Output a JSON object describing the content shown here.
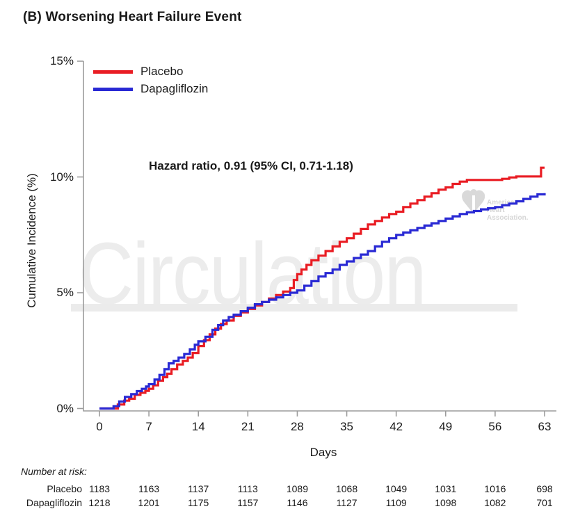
{
  "title": "(B) Worsening Heart Failure Event",
  "annotation": "Hazard ratio, 0.91 (95% CI, 0.71-1.18)",
  "watermark": {
    "journal": "Circulation",
    "aha": [
      "American",
      "Heart",
      "Association."
    ],
    "text_color": "#ececec"
  },
  "legend": {
    "items": [
      {
        "label": "Placebo",
        "color": "#e91c23"
      },
      {
        "label": "Dapagliflozin",
        "color": "#2929d4"
      }
    ]
  },
  "axes": {
    "ylabel": "Cumulative Incidence (%)",
    "xlabel": "Days",
    "axis_color": "#9c9c9c"
  },
  "chart_data": {
    "type": "line",
    "subtype": "kaplan-meier-step-cumulative-incidence",
    "title": "(B) Worsening Heart Failure Event",
    "xlabel": "Days",
    "ylabel": "Cumulative Incidence (%)",
    "xlim": [
      0,
      63
    ],
    "ylim_pct": [
      0,
      15
    ],
    "xticks": [
      0,
      7,
      14,
      21,
      28,
      35,
      42,
      49,
      56,
      63
    ],
    "yticks": [
      {
        "pct": 0,
        "label": "0%"
      },
      {
        "pct": 5,
        "label": "5%"
      },
      {
        "pct": 10,
        "label": "10%"
      },
      {
        "pct": 15,
        "label": "15%"
      }
    ],
    "grid": false,
    "legend_position": "top-left-inside",
    "annotation": "Hazard ratio, 0.91 (95% CI, 0.71-1.18)",
    "series": [
      {
        "name": "Placebo",
        "color": "#e91c23",
        "points_day_pct": [
          [
            0,
            0
          ],
          [
            2.6,
            0.17
          ],
          [
            3.5,
            0.34
          ],
          [
            4.2,
            0.42
          ],
          [
            5,
            0.59
          ],
          [
            5.8,
            0.68
          ],
          [
            6.5,
            0.76
          ],
          [
            7,
            0.85
          ],
          [
            7.6,
            1
          ],
          [
            8.3,
            1.2
          ],
          [
            9,
            1.35
          ],
          [
            9.6,
            1.5
          ],
          [
            10.2,
            1.7
          ],
          [
            11,
            1.9
          ],
          [
            11.8,
            2.05
          ],
          [
            12.5,
            2.2
          ],
          [
            13.2,
            2.4
          ],
          [
            14,
            2.7
          ],
          [
            14.8,
            2.95
          ],
          [
            15.6,
            3.2
          ],
          [
            16.4,
            3.45
          ],
          [
            17.2,
            3.65
          ],
          [
            18,
            3.8
          ],
          [
            19,
            4
          ],
          [
            20,
            4.15
          ],
          [
            21,
            4.3
          ],
          [
            22,
            4.45
          ],
          [
            23,
            4.6
          ],
          [
            24,
            4.75
          ],
          [
            25,
            4.9
          ],
          [
            26,
            5.05
          ],
          [
            27,
            5.2
          ],
          [
            27.5,
            5.55
          ],
          [
            28,
            5.8
          ],
          [
            28.6,
            6
          ],
          [
            29.3,
            6.2
          ],
          [
            30,
            6.4
          ],
          [
            31,
            6.6
          ],
          [
            32,
            6.8
          ],
          [
            33,
            7
          ],
          [
            34,
            7.2
          ],
          [
            35,
            7.35
          ],
          [
            36,
            7.55
          ],
          [
            37,
            7.75
          ],
          [
            38,
            7.95
          ],
          [
            39,
            8.1
          ],
          [
            40,
            8.25
          ],
          [
            41,
            8.4
          ],
          [
            42,
            8.5
          ],
          [
            43,
            8.7
          ],
          [
            44,
            8.85
          ],
          [
            45,
            9
          ],
          [
            46,
            9.15
          ],
          [
            47,
            9.3
          ],
          [
            48,
            9.45
          ],
          [
            49,
            9.55
          ],
          [
            50,
            9.7
          ],
          [
            51,
            9.8
          ],
          [
            52,
            9.87
          ],
          [
            57,
            9.92
          ],
          [
            58,
            9.98
          ],
          [
            59,
            10.02
          ],
          [
            62.5,
            10.4
          ],
          [
            63,
            10.4
          ]
        ]
      },
      {
        "name": "Dapagliflozin",
        "color": "#2929d4",
        "points_day_pct": [
          [
            0,
            0
          ],
          [
            2,
            0.1
          ],
          [
            2.8,
            0.3
          ],
          [
            3.6,
            0.5
          ],
          [
            4.5,
            0.62
          ],
          [
            5.3,
            0.75
          ],
          [
            6,
            0.85
          ],
          [
            6.6,
            0.95
          ],
          [
            7,
            1.05
          ],
          [
            7.8,
            1.25
          ],
          [
            8.5,
            1.45
          ],
          [
            9.2,
            1.7
          ],
          [
            9.8,
            1.95
          ],
          [
            10.5,
            2.05
          ],
          [
            11.2,
            2.2
          ],
          [
            12,
            2.35
          ],
          [
            12.8,
            2.55
          ],
          [
            13.5,
            2.75
          ],
          [
            14,
            2.9
          ],
          [
            15,
            3.1
          ],
          [
            16,
            3.4
          ],
          [
            16.8,
            3.6
          ],
          [
            17.5,
            3.8
          ],
          [
            18.3,
            3.95
          ],
          [
            19,
            4.05
          ],
          [
            20,
            4.2
          ],
          [
            21,
            4.35
          ],
          [
            22,
            4.5
          ],
          [
            23,
            4.6
          ],
          [
            24,
            4.7
          ],
          [
            25,
            4.8
          ],
          [
            26,
            4.9
          ],
          [
            27,
            5
          ],
          [
            28,
            5.1
          ],
          [
            29,
            5.3
          ],
          [
            30,
            5.5
          ],
          [
            31,
            5.7
          ],
          [
            32,
            5.85
          ],
          [
            33,
            6
          ],
          [
            34,
            6.2
          ],
          [
            35,
            6.35
          ],
          [
            36,
            6.5
          ],
          [
            37,
            6.65
          ],
          [
            38,
            6.8
          ],
          [
            39,
            7
          ],
          [
            40,
            7.2
          ],
          [
            41,
            7.35
          ],
          [
            42,
            7.5
          ],
          [
            43,
            7.6
          ],
          [
            44,
            7.7
          ],
          [
            45,
            7.8
          ],
          [
            46,
            7.9
          ],
          [
            47,
            8
          ],
          [
            48,
            8.1
          ],
          [
            49,
            8.2
          ],
          [
            50,
            8.3
          ],
          [
            51,
            8.4
          ],
          [
            52,
            8.47
          ],
          [
            53,
            8.53
          ],
          [
            54,
            8.6
          ],
          [
            55,
            8.65
          ],
          [
            56,
            8.7
          ],
          [
            57,
            8.78
          ],
          [
            58,
            8.85
          ],
          [
            59,
            8.95
          ],
          [
            60,
            9.05
          ],
          [
            61,
            9.15
          ],
          [
            62,
            9.25
          ],
          [
            63,
            9.3
          ]
        ]
      }
    ]
  },
  "risk_table": {
    "caption": "Number at risk:",
    "rows": [
      {
        "label": "Placebo",
        "values": [
          "1183",
          "1163",
          "1137",
          "1113",
          "1089",
          "1068",
          "1049",
          "1031",
          "1016",
          "698"
        ]
      },
      {
        "label": "Dapagliflozin",
        "values": [
          "1218",
          "1201",
          "1175",
          "1157",
          "1146",
          "1127",
          "1109",
          "1098",
          "1082",
          "701"
        ]
      }
    ]
  }
}
